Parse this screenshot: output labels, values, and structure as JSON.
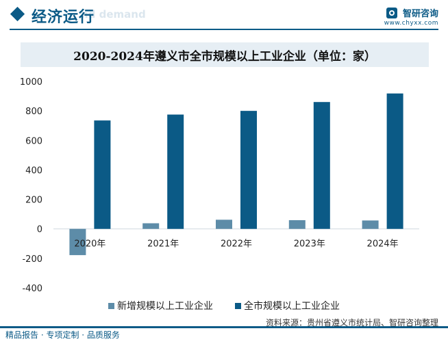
{
  "header": {
    "section_title": "经济运行",
    "bg_text": "nd demand",
    "brand_name": "智研咨询",
    "brand_url": "www.chyxx.com"
  },
  "chart_data": {
    "type": "bar",
    "title": "2020-2024年遵义市全市规模以上工业企业（单位：家）",
    "categories": [
      "2020年",
      "2021年",
      "2022年",
      "2023年",
      "2024年"
    ],
    "series": [
      {
        "name": "新增规模以上工业企业",
        "color": "#5d8ca8",
        "values": [
          -178,
          38,
          62,
          59,
          57
        ]
      },
      {
        "name": "全市规模以上工业企业",
        "color": "#0b5a86",
        "values": [
          735,
          775,
          800,
          860,
          918
        ]
      }
    ],
    "ylim": [
      -400,
      1000
    ],
    "yticks": [
      -400,
      -200,
      0,
      200,
      400,
      600,
      800,
      1000
    ],
    "xlabel": "",
    "ylabel": "",
    "grid": false,
    "legend": "bottom"
  },
  "footer": {
    "source": "资料来源：贵州省遵义市统计局、智研咨询整理",
    "tagline": "精品报告 · 专项定制 · 品质服务"
  }
}
